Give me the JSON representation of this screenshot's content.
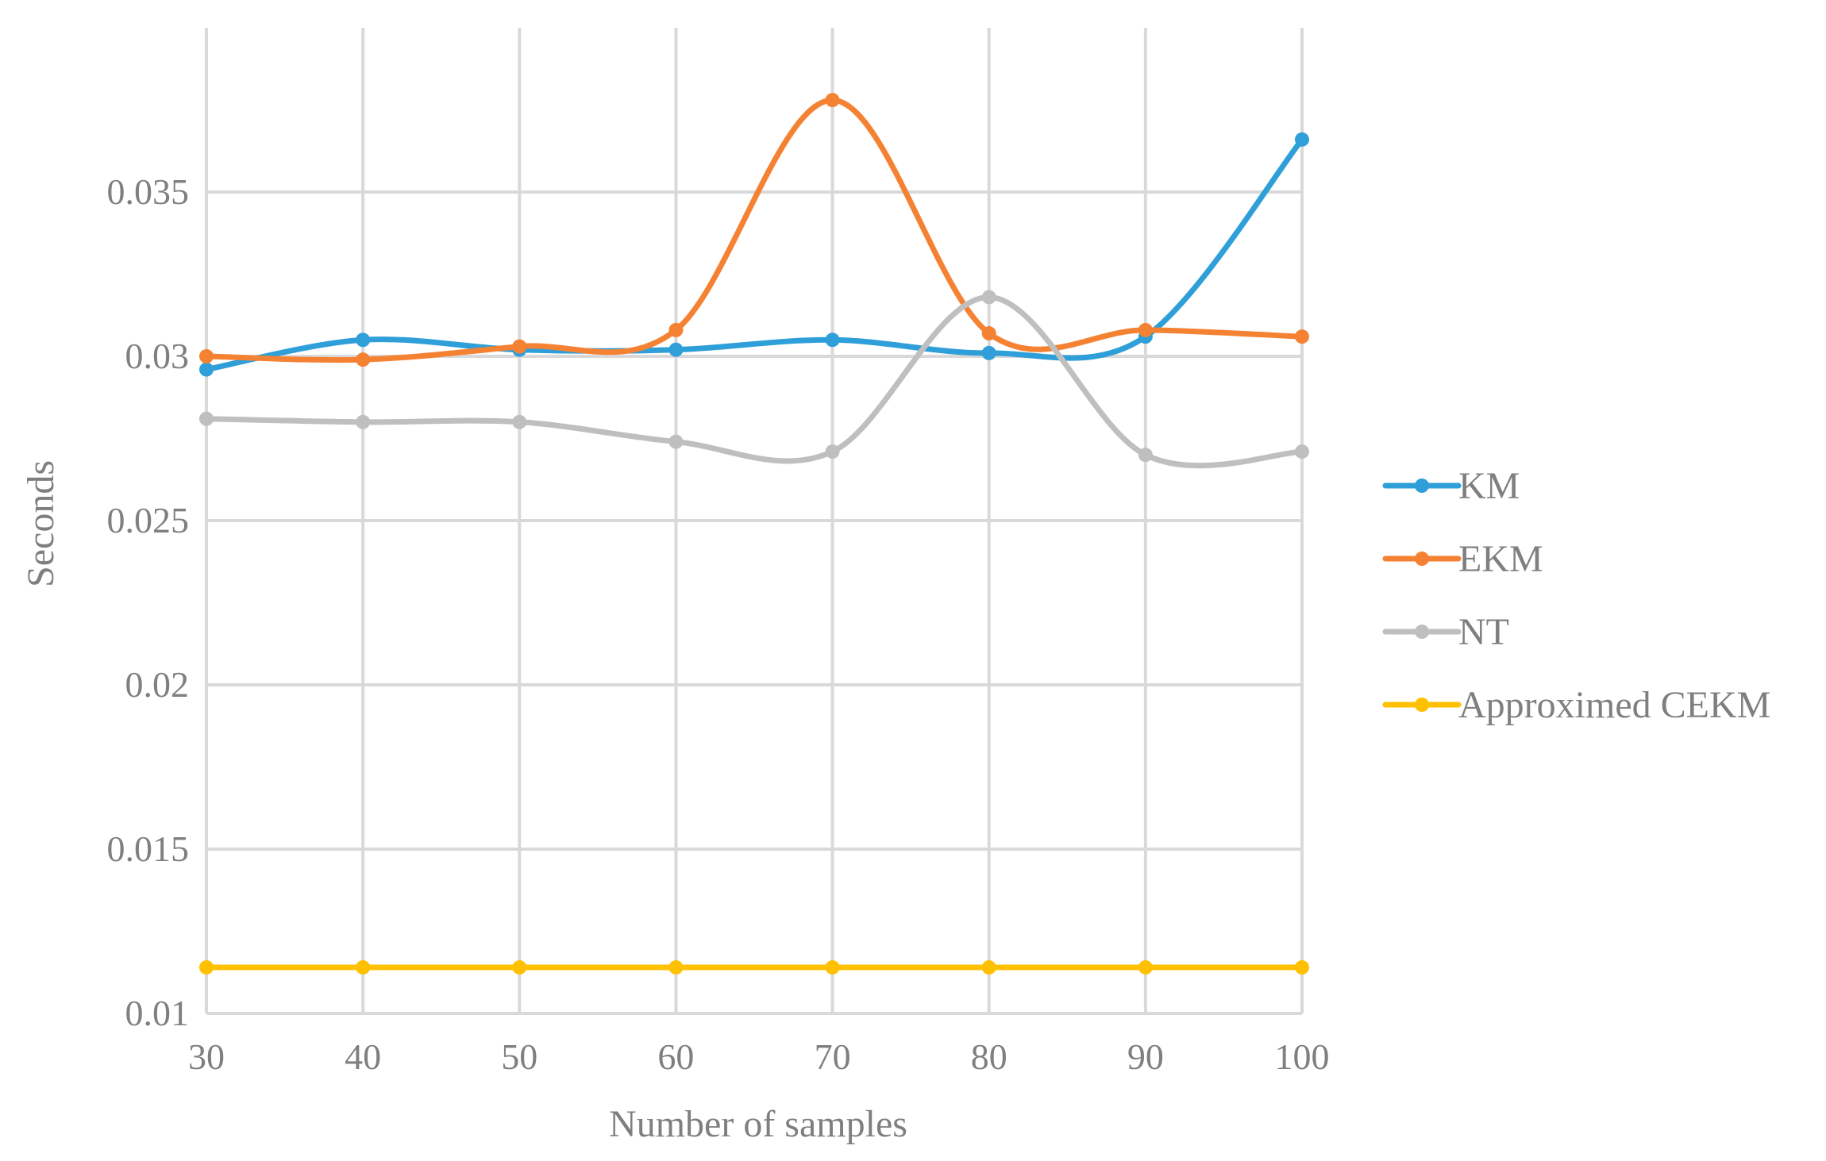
{
  "chart_data": {
    "type": "line",
    "title": "",
    "xlabel": "Number of samples",
    "ylabel": "Seconds",
    "x": [
      30,
      40,
      50,
      60,
      70,
      80,
      90,
      100
    ],
    "x_tick_labels": [
      "30",
      "40",
      "50",
      "60",
      "70",
      "80",
      "90",
      "100"
    ],
    "ylim": [
      0.01,
      0.04
    ],
    "y_ticks": [
      0.01,
      0.015,
      0.02,
      0.025,
      0.03,
      0.035
    ],
    "y_tick_labels": [
      "0.01",
      "0.015",
      "0.02",
      "0.025",
      "0.03",
      "0.035"
    ],
    "grid": true,
    "smooth": true,
    "legend_position": "right",
    "series": [
      {
        "name": "KM",
        "color": "#2e9fd8",
        "values": [
          0.0296,
          0.0305,
          0.0302,
          0.0302,
          0.0305,
          0.0301,
          0.0306,
          0.0366
        ]
      },
      {
        "name": "EKM",
        "color": "#f58233",
        "values": [
          0.03,
          0.0299,
          0.0303,
          0.0308,
          0.0378,
          0.0307,
          0.0308,
          0.0306
        ]
      },
      {
        "name": "NT",
        "color": "#bfbfbf",
        "values": [
          0.0281,
          0.028,
          0.028,
          0.0274,
          0.0271,
          0.0318,
          0.027,
          0.0271
        ]
      },
      {
        "name": "Approximed CEKM",
        "color": "#ffc000",
        "values": [
          0.0114,
          0.0114,
          0.0114,
          0.0114,
          0.0114,
          0.0114,
          0.0114,
          0.0114
        ]
      }
    ]
  }
}
